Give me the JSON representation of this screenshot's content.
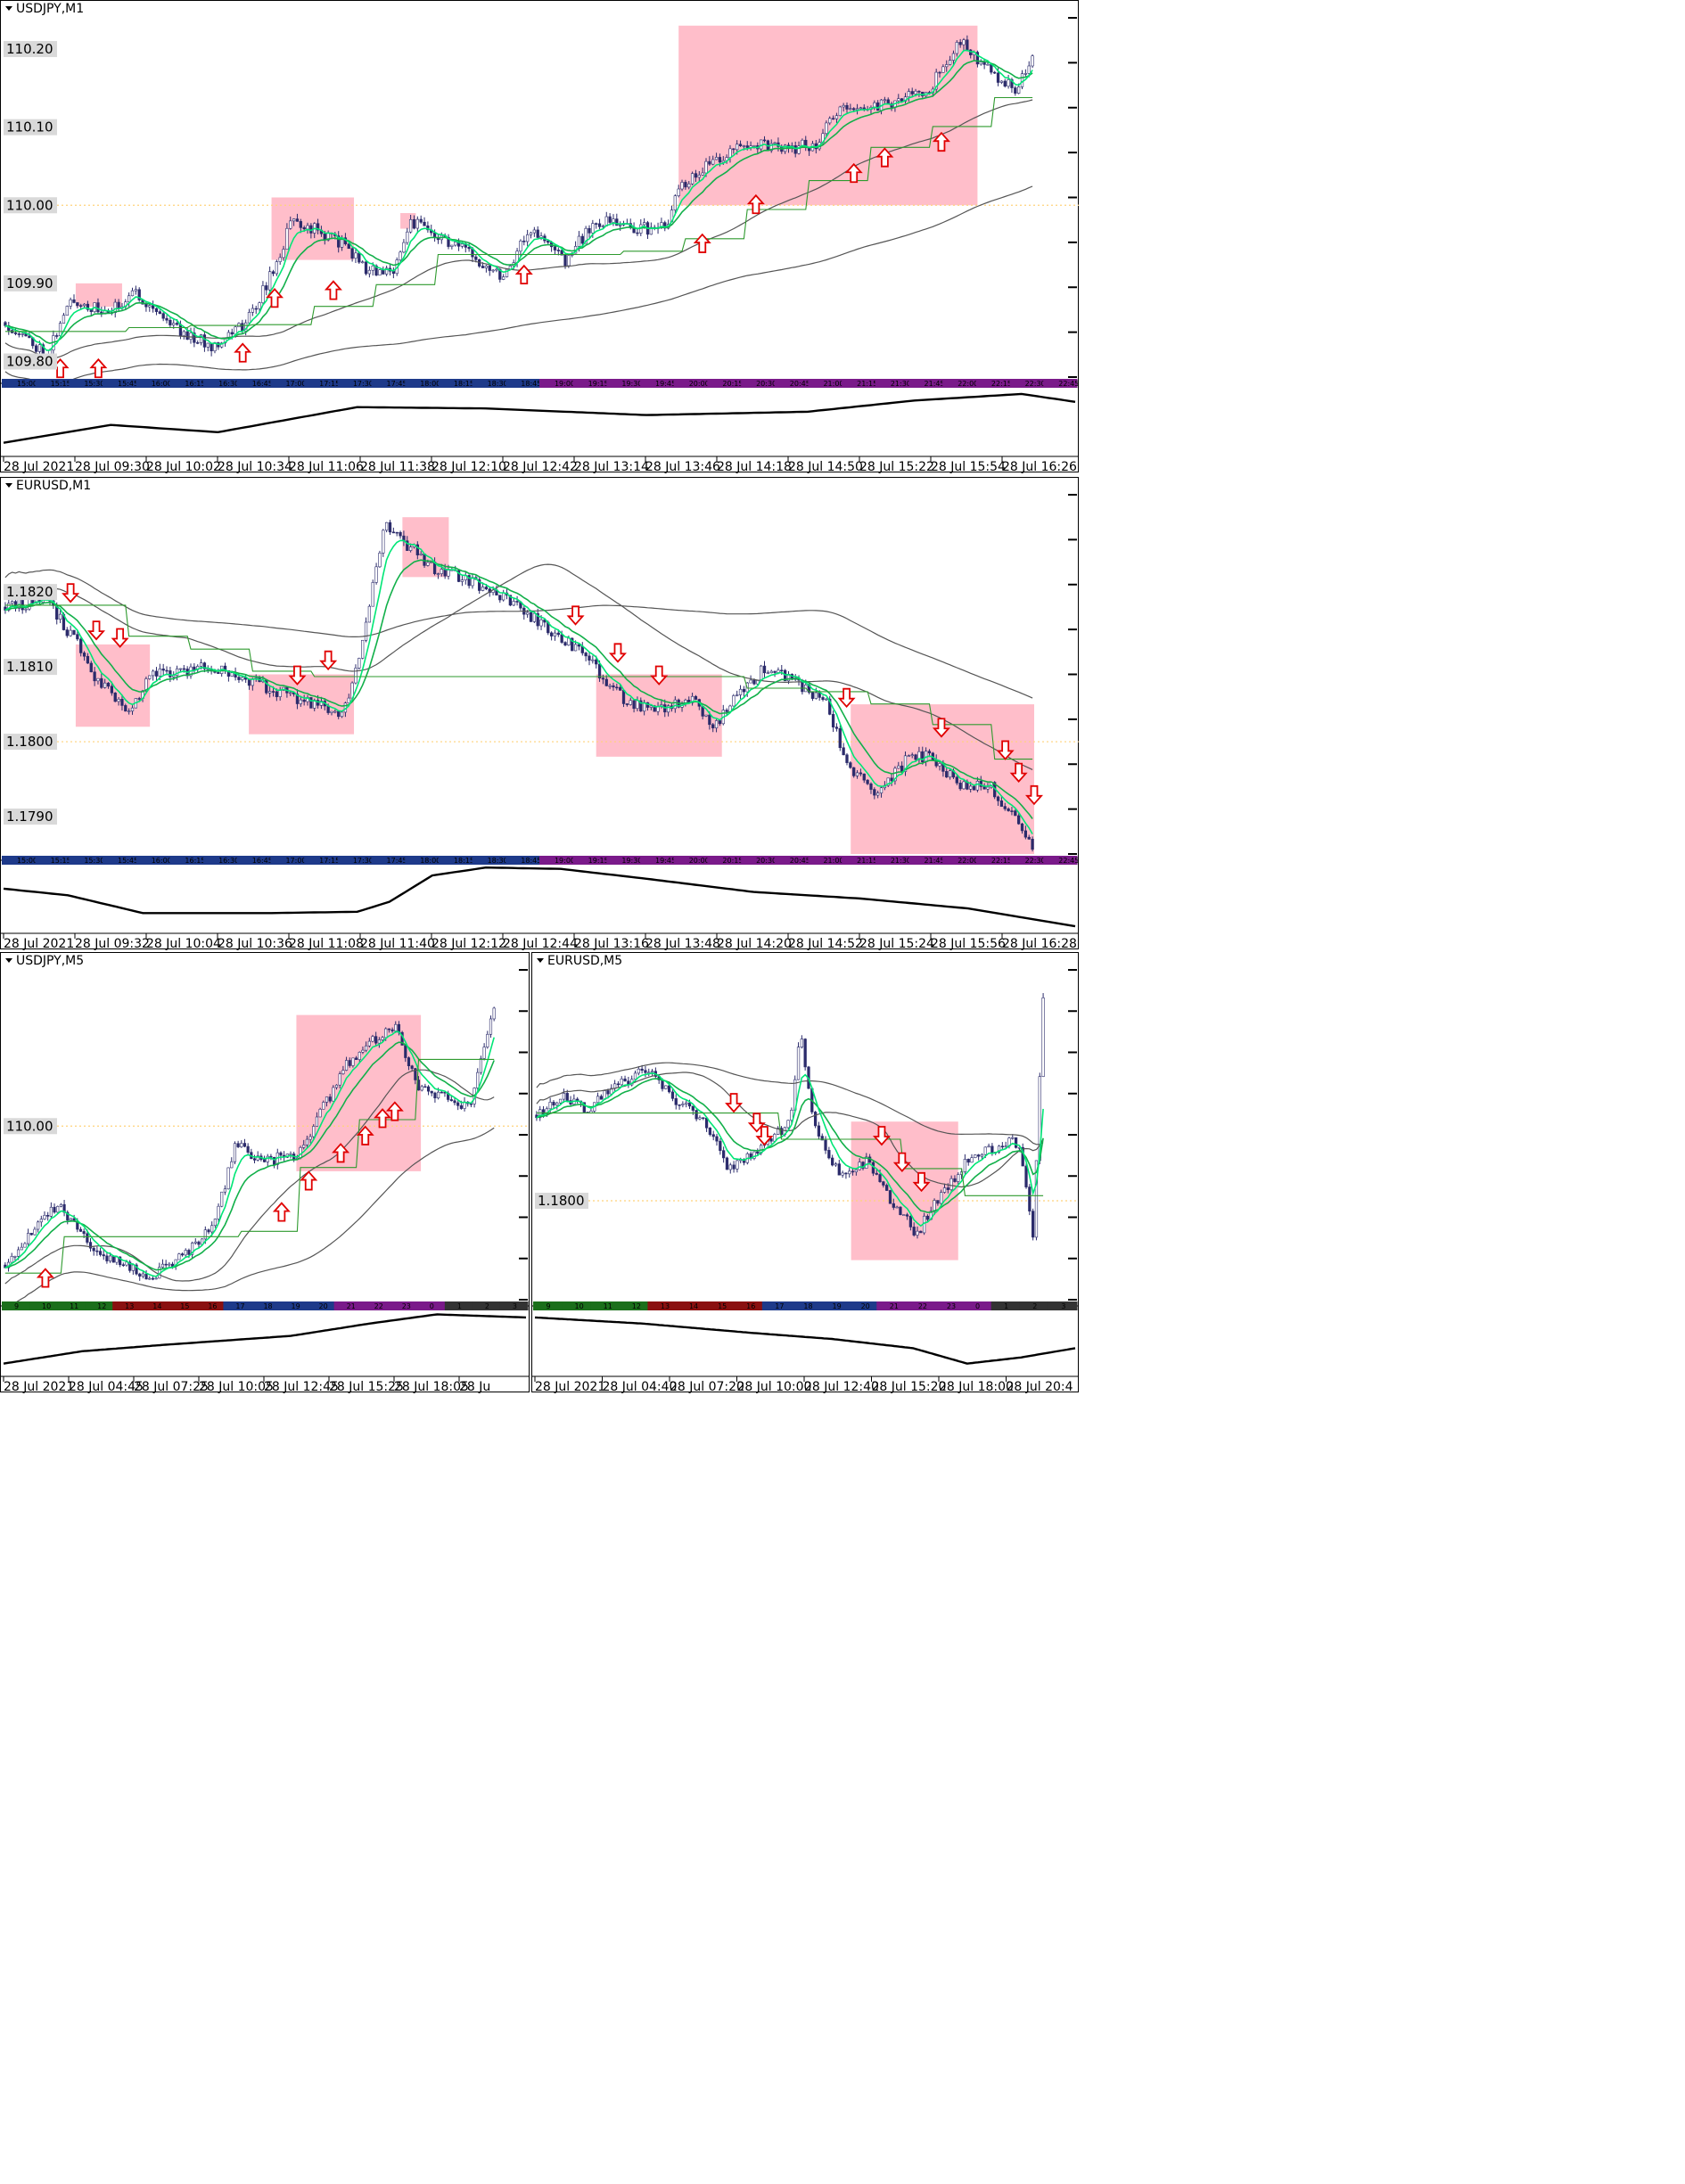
{
  "colors": {
    "zone": "#ffb3c1",
    "candle": "#2b2b6b",
    "ema_fast": "#00e676",
    "ema_slow": "#12b04a",
    "sma": "#555555",
    "step": "#2e9a2e",
    "arrow": "#e00000",
    "level": "#ffd27a",
    "osc": "#000000"
  },
  "chart_data": [
    {
      "type": "candlestick",
      "title": "USDJPY,M1",
      "ylim": [
        109.78,
        110.24
      ],
      "price_labels": [
        "110.20",
        "110.10",
        "110.00",
        "109.90",
        "109.80"
      ],
      "dotted_level": 110.0,
      "x_labels": [
        "28 Jul 2021",
        "28 Jul 09:30",
        "28 Jul 10:02",
        "28 Jul 10:34",
        "28 Jul 11:06",
        "28 Jul 11:38",
        "28 Jul 12:10",
        "28 Jul 12:42",
        "28 Jul 13:14",
        "28 Jul 13:46",
        "28 Jul 14:18",
        "28 Jul 14:50",
        "28 Jul 15:22",
        "28 Jul 15:54",
        "28 Jul 16:26"
      ],
      "session_strip": [
        "15:00",
        "15:15",
        "15:30",
        "15:45",
        "16:00",
        "16:15",
        "16:30",
        "16:45",
        "17:00",
        "17:15",
        "17:30",
        "17:45",
        "18:00",
        "18:15",
        "18:30",
        "18:45",
        "19:00",
        "19:15",
        "19:30",
        "19:45",
        "20:00",
        "20:15",
        "20:30",
        "20:45",
        "21:00",
        "21:15",
        "21:30",
        "21:45",
        "22:00",
        "22:15",
        "22:30",
        "22:45"
      ],
      "price_path": [
        [
          0,
          109.85
        ],
        [
          0.04,
          109.81
        ],
        [
          0.065,
          109.88
        ],
        [
          0.1,
          109.86
        ],
        [
          0.125,
          109.89
        ],
        [
          0.17,
          109.84
        ],
        [
          0.2,
          109.82
        ],
        [
          0.235,
          109.85
        ],
        [
          0.27,
          109.94
        ],
        [
          0.275,
          109.98
        ],
        [
          0.3,
          109.97
        ],
        [
          0.33,
          109.95
        ],
        [
          0.35,
          109.92
        ],
        [
          0.375,
          109.91
        ],
        [
          0.395,
          109.98
        ],
        [
          0.42,
          109.96
        ],
        [
          0.45,
          109.94
        ],
        [
          0.485,
          109.91
        ],
        [
          0.51,
          109.97
        ],
        [
          0.545,
          109.93
        ],
        [
          0.575,
          109.98
        ],
        [
          0.62,
          109.97
        ],
        [
          0.645,
          109.97
        ],
        [
          0.655,
          110.02
        ],
        [
          0.69,
          110.06
        ],
        [
          0.73,
          110.08
        ],
        [
          0.76,
          110.07
        ],
        [
          0.79,
          110.08
        ],
        [
          0.81,
          110.12
        ],
        [
          0.86,
          110.13
        ],
        [
          0.9,
          110.15
        ],
        [
          0.93,
          110.21
        ],
        [
          0.96,
          110.17
        ],
        [
          0.985,
          110.15
        ],
        [
          1.0,
          110.19
        ]
      ],
      "zones": [
        {
          "x0": 0.07,
          "x1": 0.115,
          "y0": 109.87,
          "y1": 109.9
        },
        {
          "x0": 0.26,
          "x1": 0.34,
          "y0": 109.93,
          "y1": 110.01
        },
        {
          "x0": 0.385,
          "x1": 0.4,
          "y0": 109.97,
          "y1": 109.99
        },
        {
          "x0": 0.655,
          "x1": 0.945,
          "y0": 110.0,
          "y1": 110.23
        }
      ],
      "arrows_up": [
        [
          0.055,
          109.79
        ],
        [
          0.092,
          109.79
        ],
        [
          0.232,
          109.81
        ],
        [
          0.263,
          109.88
        ],
        [
          0.32,
          109.89
        ],
        [
          0.505,
          109.91
        ],
        [
          0.678,
          109.95
        ],
        [
          0.73,
          110.0
        ],
        [
          0.825,
          110.04
        ],
        [
          0.855,
          110.06
        ],
        [
          0.91,
          110.08
        ]
      ],
      "oscillator": [
        [
          0,
          0.82
        ],
        [
          0.1,
          0.55
        ],
        [
          0.2,
          0.66
        ],
        [
          0.33,
          0.28
        ],
        [
          0.45,
          0.3
        ],
        [
          0.6,
          0.4
        ],
        [
          0.75,
          0.35
        ],
        [
          0.85,
          0.18
        ],
        [
          0.95,
          0.08
        ],
        [
          1.0,
          0.2
        ]
      ]
    },
    {
      "type": "candlestick",
      "title": "EURUSD,M1",
      "ylim": [
        1.1785,
        1.1833
      ],
      "price_labels": [
        "1.1820",
        "1.1810",
        "1.1800",
        "1.1790"
      ],
      "dotted_level": 1.18,
      "x_labels": [
        "28 Jul 2021",
        "28 Jul 09:32",
        "28 Jul 10:04",
        "28 Jul 10:36",
        "28 Jul 11:08",
        "28 Jul 11:40",
        "28 Jul 12:12",
        "28 Jul 12:44",
        "28 Jul 13:16",
        "28 Jul 13:48",
        "28 Jul 14:20",
        "28 Jul 14:52",
        "28 Jul 15:24",
        "28 Jul 15:56",
        "28 Jul 16:28"
      ],
      "session_strip": [
        "15:00",
        "15:15",
        "15:30",
        "15:45",
        "16:00",
        "16:15",
        "16:30",
        "16:45",
        "17:00",
        "17:15",
        "17:30",
        "17:45",
        "18:00",
        "18:15",
        "18:30",
        "18:45",
        "19:00",
        "19:15",
        "19:30",
        "19:45",
        "20:00",
        "20:15",
        "20:30",
        "20:45",
        "21:00",
        "21:15",
        "21:30",
        "21:45",
        "22:00",
        "22:15",
        "22:30",
        "22:45"
      ],
      "price_path": [
        [
          0,
          1.1818
        ],
        [
          0.04,
          1.1819
        ],
        [
          0.07,
          1.1813
        ],
        [
          0.09,
          1.1808
        ],
        [
          0.12,
          1.1804
        ],
        [
          0.14,
          1.1809
        ],
        [
          0.2,
          1.181
        ],
        [
          0.24,
          1.1808
        ],
        [
          0.3,
          1.1805
        ],
        [
          0.33,
          1.1804
        ],
        [
          0.35,
          1.1815
        ],
        [
          0.37,
          1.1829
        ],
        [
          0.385,
          1.1827
        ],
        [
          0.42,
          1.1823
        ],
        [
          0.46,
          1.1821
        ],
        [
          0.5,
          1.1818
        ],
        [
          0.53,
          1.1815
        ],
        [
          0.56,
          1.1812
        ],
        [
          0.6,
          1.1806
        ],
        [
          0.63,
          1.1804
        ],
        [
          0.67,
          1.1806
        ],
        [
          0.69,
          1.1802
        ],
        [
          0.71,
          1.1806
        ],
        [
          0.74,
          1.181
        ],
        [
          0.78,
          1.1807
        ],
        [
          0.8,
          1.1805
        ],
        [
          0.82,
          1.1797
        ],
        [
          0.85,
          1.1793
        ],
        [
          0.88,
          1.1798
        ],
        [
          0.9,
          1.1798
        ],
        [
          0.93,
          1.1794
        ],
        [
          0.96,
          1.1794
        ],
        [
          1.0,
          1.1786
        ]
      ],
      "zones": [
        {
          "x0": 0.07,
          "x1": 0.142,
          "y0": 1.1802,
          "y1": 1.1813
        },
        {
          "x0": 0.238,
          "x1": 0.34,
          "y0": 1.1801,
          "y1": 1.1809
        },
        {
          "x0": 0.387,
          "x1": 0.432,
          "y0": 1.1822,
          "y1": 1.183
        },
        {
          "x0": 0.575,
          "x1": 0.697,
          "y0": 1.1798,
          "y1": 1.1809
        },
        {
          "x0": 0.822,
          "x1": 1.0,
          "y0": 1.1785,
          "y1": 1.1805
        }
      ],
      "arrows_down": [
        [
          0.065,
          1.182
        ],
        [
          0.09,
          1.1815
        ],
        [
          0.113,
          1.1814
        ],
        [
          0.285,
          1.1809
        ],
        [
          0.315,
          1.1811
        ],
        [
          0.555,
          1.1817
        ],
        [
          0.596,
          1.1812
        ],
        [
          0.636,
          1.1809
        ],
        [
          0.818,
          1.1806
        ],
        [
          0.91,
          1.1802
        ],
        [
          0.972,
          1.1799
        ],
        [
          0.985,
          1.1796
        ],
        [
          1.0,
          1.1793
        ]
      ],
      "oscillator": [
        [
          0,
          0.35
        ],
        [
          0.06,
          0.45
        ],
        [
          0.13,
          0.72
        ],
        [
          0.25,
          0.72
        ],
        [
          0.33,
          0.7
        ],
        [
          0.36,
          0.55
        ],
        [
          0.4,
          0.15
        ],
        [
          0.45,
          0.03
        ],
        [
          0.52,
          0.05
        ],
        [
          0.6,
          0.2
        ],
        [
          0.7,
          0.4
        ],
        [
          0.8,
          0.5
        ],
        [
          0.9,
          0.65
        ],
        [
          1.0,
          0.92
        ]
      ]
    },
    {
      "type": "candlestick",
      "title": "USDJPY,M5",
      "ylim": [
        109.5,
        110.45
      ],
      "price_labels": [
        "110.00"
      ],
      "dotted_level": 110.0,
      "x_labels": [
        "28 Jul 2021",
        "28 Jul 04:45",
        "28 Jul 07:25",
        "28 Jul 10:05",
        "28 Jul 12:45",
        "28 Jul 15:25",
        "28 Jul 18:05",
        "28 Ju"
      ],
      "session_strip": [
        "9",
        "10",
        "11",
        "12",
        "13",
        "14",
        "15",
        "16",
        "17",
        "18",
        "19",
        "20",
        "21",
        "22",
        "23",
        "0",
        "1",
        "2",
        "3"
      ],
      "price_path": [
        [
          0,
          109.6
        ],
        [
          0.05,
          109.68
        ],
        [
          0.11,
          109.78
        ],
        [
          0.17,
          109.66
        ],
        [
          0.24,
          109.6
        ],
        [
          0.3,
          109.57
        ],
        [
          0.36,
          109.62
        ],
        [
          0.43,
          109.72
        ],
        [
          0.47,
          109.95
        ],
        [
          0.53,
          109.9
        ],
        [
          0.6,
          109.92
        ],
        [
          0.65,
          110.05
        ],
        [
          0.7,
          110.18
        ],
        [
          0.75,
          110.25
        ],
        [
          0.8,
          110.28
        ],
        [
          0.84,
          110.12
        ],
        [
          0.9,
          110.08
        ],
        [
          0.95,
          110.06
        ],
        [
          1.0,
          110.35
        ]
      ],
      "zones": [
        {
          "x0": 0.595,
          "x1": 0.848,
          "y0": 109.87,
          "y1": 110.32
        }
      ],
      "arrows_up": [
        [
          0.085,
          109.56
        ],
        [
          0.565,
          109.75
        ],
        [
          0.62,
          109.84
        ],
        [
          0.685,
          109.92
        ],
        [
          0.735,
          109.97
        ],
        [
          0.77,
          110.02
        ],
        [
          0.795,
          110.04
        ]
      ],
      "oscillator": [
        [
          0,
          0.85
        ],
        [
          0.15,
          0.65
        ],
        [
          0.3,
          0.55
        ],
        [
          0.55,
          0.4
        ],
        [
          0.7,
          0.2
        ],
        [
          0.83,
          0.05
        ],
        [
          1.0,
          0.1
        ]
      ]
    },
    {
      "type": "candlestick",
      "title": "EURUSD,M5",
      "ylim": [
        1.1785,
        1.1835
      ],
      "price_labels": [
        "1.1800"
      ],
      "dotted_level": 1.18,
      "x_labels": [
        "28 Jul 2021",
        "28 Jul 04:40",
        "28 Jul 07:20",
        "28 Jul 10:00",
        "28 Jul 12:40",
        "28 Jul 15:20",
        "28 Jul 18:00",
        "28 Jul 20:4"
      ],
      "session_strip": [
        "9",
        "10",
        "11",
        "12",
        "13",
        "14",
        "15",
        "16",
        "17",
        "18",
        "19",
        "20",
        "21",
        "22",
        "23",
        "0",
        "1",
        "2",
        "3"
      ],
      "price_path": [
        [
          0,
          1.1813
        ],
        [
          0.05,
          1.1816
        ],
        [
          0.1,
          1.1814
        ],
        [
          0.15,
          1.1817
        ],
        [
          0.22,
          1.182
        ],
        [
          0.28,
          1.1815
        ],
        [
          0.33,
          1.1812
        ],
        [
          0.38,
          1.1805
        ],
        [
          0.44,
          1.1808
        ],
        [
          0.5,
          1.1812
        ],
        [
          0.52,
          1.1826
        ],
        [
          0.55,
          1.1811
        ],
        [
          0.6,
          1.1804
        ],
        [
          0.65,
          1.1806
        ],
        [
          0.7,
          1.18
        ],
        [
          0.75,
          1.1795
        ],
        [
          0.8,
          1.1801
        ],
        [
          0.85,
          1.1806
        ],
        [
          0.9,
          1.1808
        ],
        [
          0.95,
          1.1809
        ],
        [
          0.98,
          1.1795
        ],
        [
          1.0,
          1.183
        ]
      ],
      "zones": [
        {
          "x0": 0.62,
          "x1": 0.83,
          "y0": 1.1791,
          "y1": 1.1812
        }
      ],
      "arrows_down": [
        [
          0.39,
          1.1815
        ],
        [
          0.435,
          1.1812
        ],
        [
          0.45,
          1.181
        ],
        [
          0.68,
          1.181
        ],
        [
          0.72,
          1.1806
        ],
        [
          0.758,
          1.1803
        ]
      ],
      "oscillator": [
        [
          0,
          0.1
        ],
        [
          0.2,
          0.2
        ],
        [
          0.4,
          0.35
        ],
        [
          0.55,
          0.45
        ],
        [
          0.7,
          0.6
        ],
        [
          0.8,
          0.85
        ],
        [
          0.9,
          0.75
        ],
        [
          1.0,
          0.6
        ]
      ]
    }
  ]
}
